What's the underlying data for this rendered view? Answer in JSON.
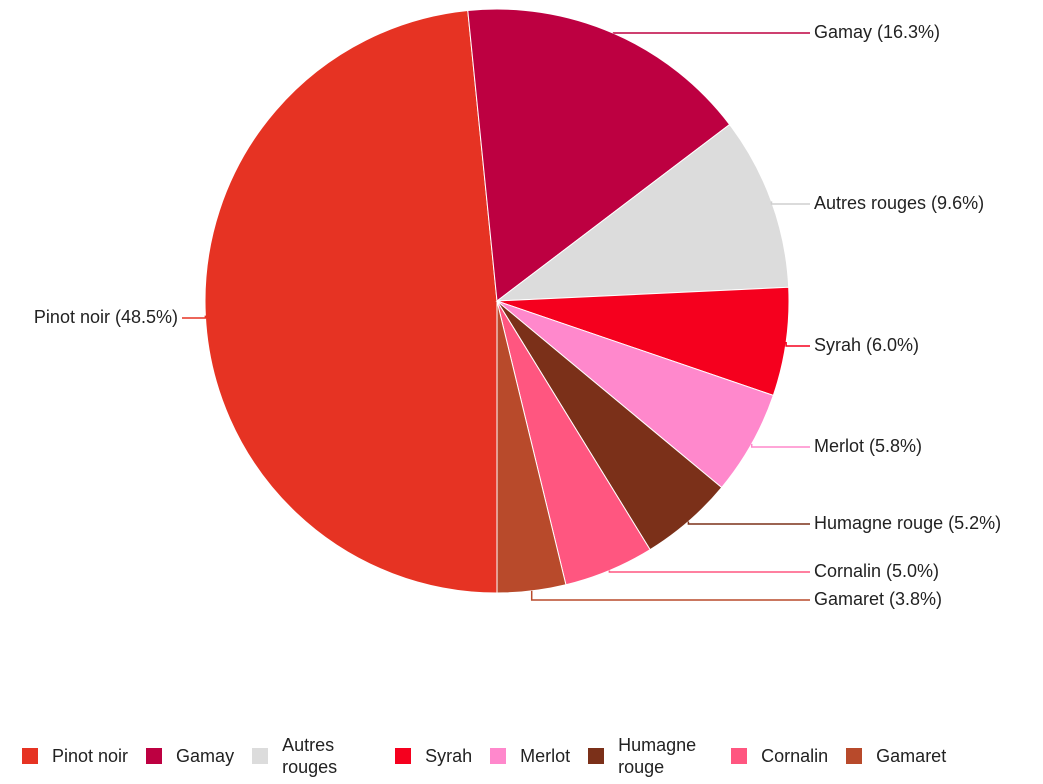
{
  "chart_data": {
    "type": "pie",
    "categories": [
      "Pinot noir",
      "Gamay",
      "Autres rouges",
      "Syrah",
      "Merlot",
      "Humagne rouge",
      "Cornalin",
      "Gamaret"
    ],
    "values": [
      48.5,
      16.3,
      9.6,
      6.0,
      5.8,
      5.2,
      5.0,
      3.8
    ],
    "value_labels": [
      "Pinot noir (48.5%)",
      "Gamay (16.3%)",
      "Autres rouges (9.6%)",
      "Syrah (6.0%)",
      "Merlot (5.8%)",
      "Humagne rouge (5.2%)",
      "Cornalin (5.0%)",
      "Gamaret (3.8%)"
    ],
    "colors": [
      "#e63323",
      "#bd0041",
      "#dcdcdc",
      "#f5001e",
      "#ff88cc",
      "#7b3019",
      "#ff5680",
      "#b84a2b"
    ],
    "legend": "bottom"
  }
}
